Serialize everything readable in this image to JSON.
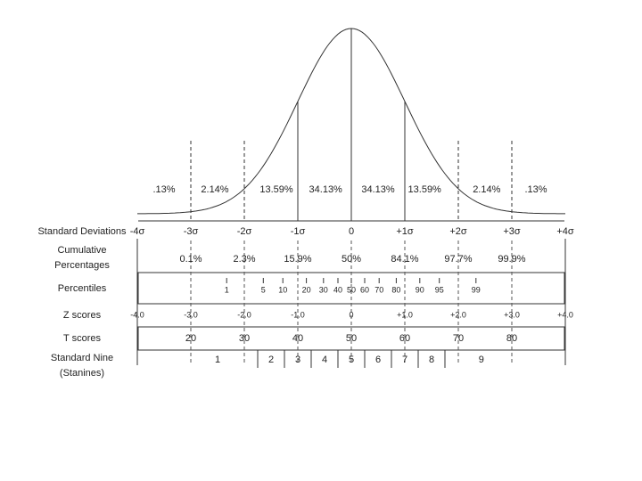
{
  "regions": [
    ".13%",
    "2.14%",
    "13.59%",
    "34.13%",
    "34.13%",
    "13.59%",
    "2.14%",
    ".13%"
  ],
  "standard_deviations": {
    "label": "Standard Deviations",
    "ticks": [
      "-4σ",
      "-3σ",
      "-2σ",
      "-1σ",
      "0",
      "+1σ",
      "+2σ",
      "+3σ",
      "+4σ"
    ]
  },
  "cumulative_percentages": {
    "label": [
      "Cumulative",
      "Percentages"
    ],
    "ticks": [
      "0.1%",
      "2.3%",
      "15.9%",
      "50%",
      "84.1%",
      "97.7%",
      "99.9%"
    ]
  },
  "percentiles": {
    "label": "Percentiles",
    "ticks": [
      "1",
      "5",
      "10",
      "20",
      "30",
      "40",
      "50",
      "60",
      "70",
      "80",
      "90",
      "95",
      "99"
    ]
  },
  "z_scores": {
    "label": "Z scores",
    "ticks": [
      "-4.0",
      "-3.0",
      "-2.0",
      "-1.0",
      "0",
      "+1.0",
      "+2.0",
      "+3.0",
      "+4.0"
    ]
  },
  "t_scores": {
    "label": "T scores",
    "ticks": [
      "20",
      "30",
      "40",
      "50",
      "60",
      "70",
      "80"
    ]
  },
  "stanines": {
    "label": [
      "Standard Nine",
      "(Stanines)"
    ],
    "ticks": [
      "1",
      "2",
      "3",
      "4",
      "5",
      "6",
      "7",
      "8",
      "9"
    ]
  }
}
